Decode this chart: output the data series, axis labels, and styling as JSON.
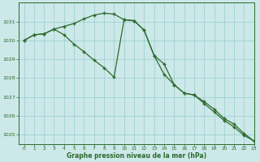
{
  "line1": {
    "x": [
      0,
      1,
      2,
      3,
      4,
      5,
      6,
      7,
      8,
      9,
      10,
      11,
      12,
      13,
      14,
      15,
      16,
      17,
      18,
      19,
      20,
      21,
      22,
      23
    ],
    "y": [
      1030.0,
      1030.3,
      1030.35,
      1030.6,
      1030.75,
      1030.9,
      1031.15,
      1031.35,
      1031.45,
      1031.4,
      1031.1,
      1031.05,
      1030.55,
      1029.2,
      1028.75,
      1027.65,
      1027.2,
      1027.1,
      1026.75,
      1026.35,
      1025.85,
      1025.55,
      1025.05,
      1024.65
    ]
  },
  "line2": {
    "x": [
      0,
      1,
      2,
      3,
      4,
      5,
      6,
      7,
      8,
      9,
      10,
      11,
      12,
      13,
      14,
      15,
      16,
      17,
      18,
      19,
      20,
      21,
      22,
      23
    ],
    "y": [
      1030.0,
      1030.3,
      1030.35,
      1030.6,
      1030.3,
      1029.8,
      1029.4,
      1028.95,
      1028.55,
      1028.05,
      1031.1,
      1031.05,
      1030.55,
      1029.2,
      1028.2,
      1027.65,
      1027.2,
      1027.1,
      1026.65,
      1026.2,
      1025.75,
      1025.4,
      1024.95,
      1024.65
    ]
  },
  "line_color": "#2d6a2d",
  "bg_color": "#cce8e8",
  "grid_color": "#99cccc",
  "xlabel": "Graphe pression niveau de la mer (hPa)",
  "ylim": [
    1024.5,
    1032.0
  ],
  "xlim": [
    -0.5,
    23
  ],
  "yticks": [
    1025,
    1026,
    1027,
    1028,
    1029,
    1030,
    1031
  ],
  "xticks": [
    0,
    1,
    2,
    3,
    4,
    5,
    6,
    7,
    8,
    9,
    10,
    11,
    12,
    13,
    14,
    15,
    16,
    17,
    18,
    19,
    20,
    21,
    22,
    23
  ]
}
